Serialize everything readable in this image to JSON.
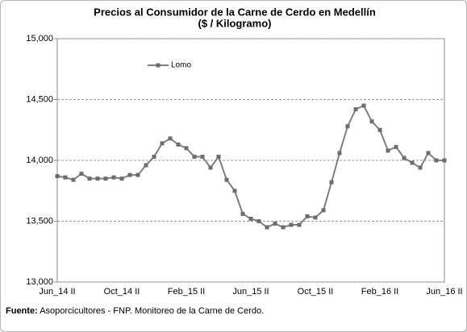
{
  "chart_data": {
    "type": "line",
    "title": "Precios al Consumidor de la Carne de Cerdo en Medellín",
    "subtitle": "($ / Kilogramo)",
    "source_label": "Fuente:",
    "source": "Asoporcicultores - FNP. Monitoreo de la Carne de Cerdo.",
    "categories": [
      "Jun_14 II",
      null,
      null,
      null,
      null,
      null,
      null,
      null,
      "Oct_14 II",
      null,
      null,
      null,
      null,
      null,
      null,
      null,
      "Feb_15 II",
      null,
      null,
      null,
      null,
      null,
      null,
      null,
      "Jun_15 II",
      null,
      null,
      null,
      null,
      null,
      null,
      null,
      "Oct_15 II",
      null,
      null,
      null,
      null,
      null,
      null,
      null,
      "Feb_16 II",
      null,
      null,
      null,
      null,
      null,
      null,
      null,
      "Jun_16 II"
    ],
    "series": [
      {
        "name": "Lomo",
        "color": "#7f7f7f",
        "marker_color": "#6d6d6d",
        "values": [
          13870,
          13860,
          13840,
          13890,
          13850,
          13850,
          13850,
          13860,
          13850,
          13880,
          13880,
          13960,
          14030,
          14140,
          14180,
          14130,
          14100,
          14030,
          14030,
          13940,
          14030,
          13840,
          13750,
          13560,
          13520,
          13500,
          13450,
          13480,
          13450,
          13470,
          13470,
          13540,
          13530,
          13590,
          13820,
          14060,
          14280,
          14420,
          14450,
          14320,
          14250,
          14080,
          14110,
          14020,
          13980,
          13940,
          14060,
          14000,
          14000
        ]
      }
    ],
    "ylim": [
      13000,
      15000
    ],
    "yticks": [
      {
        "value": 13000,
        "label": "13,000"
      },
      {
        "value": 13500,
        "label": "13,500"
      },
      {
        "value": 14000,
        "label": "14,000"
      },
      {
        "value": 14500,
        "label": "14,500"
      },
      {
        "value": 15000,
        "label": "15,000"
      }
    ],
    "grid": true,
    "legend": "upper left"
  }
}
